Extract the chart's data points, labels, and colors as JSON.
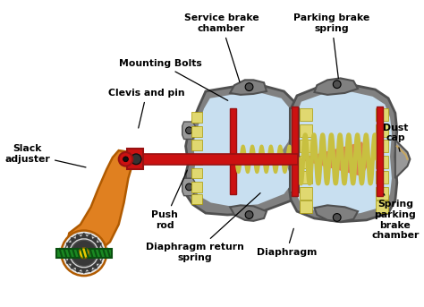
{
  "background_color": "#ffffff",
  "colors": {
    "gray_body": "#808080",
    "gray_dark": "#505050",
    "gray_mid": "#999999",
    "gray_light": "#bbbbbb",
    "light_blue": "#c8dff0",
    "red": "#cc1111",
    "red_dark": "#991111",
    "yellow_spring": "#c8c040",
    "yellow_pad": "#e0d870",
    "orange_adjuster": "#e08020",
    "orange_dark": "#b05a00",
    "green": "#1a8822",
    "green_dark": "#0a5010",
    "dark_gear": "#383838",
    "gear_light": "#d8d8d8",
    "black": "#000000",
    "orange_cone": "#e07030",
    "tan": "#c8a860"
  },
  "figsize": [
    4.74,
    3.43
  ],
  "dpi": 100,
  "labels": {
    "service_brake_chamber": "Service brake\nchamber",
    "parking_brake_spring": "Parking brake\nspring",
    "mounting_bolts": "Mounting Bolts",
    "clevis_and_pin": "Clevis and pin",
    "slack_adjuster": "Slack\nadjuster",
    "push_rod": "Push\nrod",
    "diaphragm_return_spring": "Diaphragm return\nspring",
    "diaphragm": "Diaphragm",
    "dust_cap": "Dust\ncap",
    "spring_parking_brake_chamber": "Spring\nparking\nbrake\nchamber"
  }
}
